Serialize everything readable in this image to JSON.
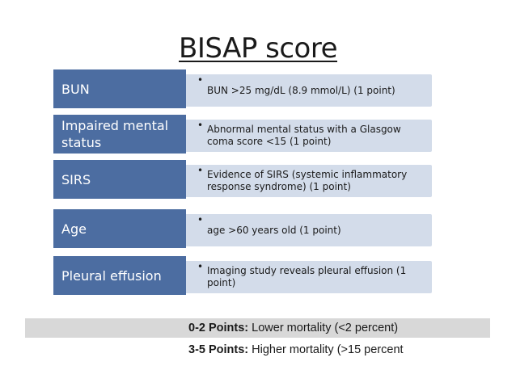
{
  "title": "BISAP score",
  "criteria": [
    {
      "label": "BUN",
      "detail": "BUN >25 mg/dL (8.9 mmol/L) (1 point)"
    },
    {
      "label": "Impaired mental status",
      "detail": "Abnormal mental status with a Glasgow coma score <15 (1 point)"
    },
    {
      "label": "SIRS",
      "detail": "Evidence of SIRS (systemic inflammatory response syndrome) (1 point)"
    },
    {
      "label": "Age",
      "detail": "age >60 years old (1 point)"
    },
    {
      "label": "Pleural effusion",
      "detail": "Imaging study reveals pleural effusion (1 point)"
    }
  ],
  "bullet": "•",
  "interpretation": [
    {
      "range": "0-2 Points:",
      "text": "Lower mortality (<2 percent)"
    },
    {
      "range": "3-5 Points:",
      "text": "Higher mortality (>15 percent"
    }
  ],
  "colors": {
    "label_bg": "#4c6da1",
    "detail_bg": "#d3dcea",
    "band_bg": "#d8d8d8"
  }
}
